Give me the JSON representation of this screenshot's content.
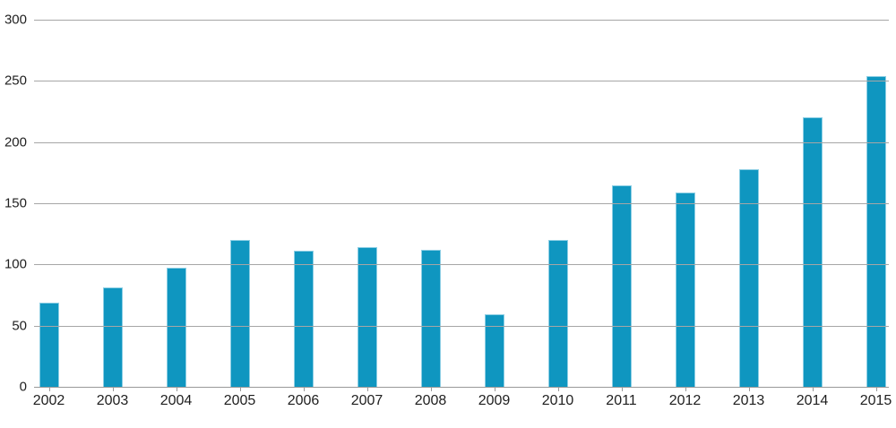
{
  "chart_data": {
    "type": "bar",
    "title": "",
    "xlabel": "",
    "ylabel": "",
    "categories": [
      "2002",
      "2003",
      "2004",
      "2005",
      "2006",
      "2007",
      "2008",
      "2009",
      "2010",
      "2011",
      "2012",
      "2013",
      "2014",
      "2015"
    ],
    "values": [
      69,
      81,
      97,
      120,
      111,
      114,
      112,
      59,
      120,
      165,
      159,
      178,
      220,
      254
    ],
    "ylim": [
      0,
      300
    ],
    "yticks": [
      0,
      50,
      100,
      150,
      200,
      250,
      300
    ],
    "grid": true,
    "legend": false,
    "colors": {
      "bar_fill": "#0f96c0",
      "bar_edge": "#8ccee4",
      "gridline": "#a6a6a6",
      "axis_line": "#999999",
      "tick_mark": "#999999",
      "label_text": "#1f1f1f",
      "background": "#ffffff"
    }
  }
}
